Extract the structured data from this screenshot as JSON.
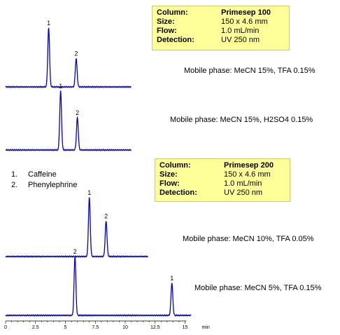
{
  "conditions_1": {
    "column_label": "Column:",
    "column_value": "Primesep 100",
    "size_label": "Size:",
    "size_value": "150 x 4.6 mm",
    "flow_label": "Flow:",
    "flow_value": "1.0 mL/min",
    "detection_label": "Detection:",
    "detection_value": "UV 250 nm"
  },
  "conditions_2": {
    "column_label": "Column:",
    "column_value": "Primesep 200",
    "size_label": "Size:",
    "size_value": "150 x 4.6 mm",
    "flow_label": "Flow:",
    "flow_value": "1.0 mL/min",
    "detection_label": "Detection:",
    "detection_value": "UV 250 nm"
  },
  "legend": [
    {
      "num": "1.",
      "name": "Caffeine"
    },
    {
      "num": "2.",
      "name": "Phenylephrine"
    }
  ],
  "chart_data": {
    "type": "line",
    "x_unit": "min",
    "xlim": [
      0,
      15
    ],
    "x_ticks": [
      "0",
      "2.5",
      "5",
      "7.5",
      "10",
      "12.5",
      "15"
    ],
    "line_color": "#0000cc",
    "traces": [
      {
        "mobile_phase": "Mobile phase:  MeCN 15%, TFA 0.15%",
        "x_end": 10.5,
        "peaks": [
          {
            "label": "1",
            "rt": 3.6,
            "height": 1.0
          },
          {
            "label": "2",
            "rt": 5.9,
            "height": 0.48
          }
        ]
      },
      {
        "mobile_phase": "Mobile phase:  MeCN 15%, H2SO4  0.15%",
        "x_end": 10.5,
        "peaks": [
          {
            "label": "1",
            "rt": 4.6,
            "height": 1.0
          },
          {
            "label": "2",
            "rt": 6.0,
            "height": 0.55
          }
        ]
      },
      {
        "mobile_phase": "Mobile phase:  MeCN 10%, TFA  0.05%",
        "x_end": 11.9,
        "peaks": [
          {
            "label": "1",
            "rt": 7.0,
            "height": 1.0
          },
          {
            "label": "2",
            "rt": 8.4,
            "height": 0.6
          }
        ]
      },
      {
        "mobile_phase": "Mobile phase:  MeCN 5%, TFA  0.15%",
        "x_end": 15.5,
        "peaks": [
          {
            "label": "2",
            "rt": 5.8,
            "height": 1.0
          },
          {
            "label": "1",
            "rt": 13.9,
            "height": 0.55
          }
        ]
      }
    ]
  }
}
